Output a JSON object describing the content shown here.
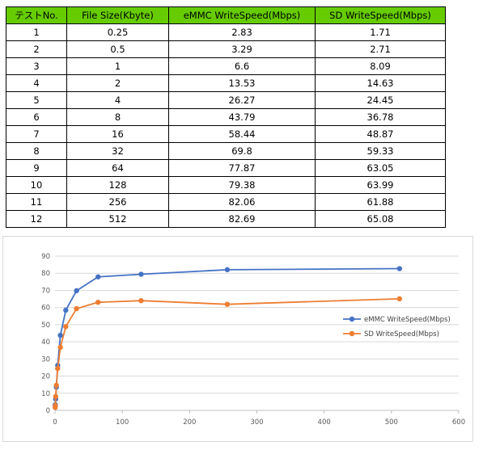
{
  "table": {
    "headers": [
      "テストNo.",
      "File Size(Kbyte)",
      "eMMC WriteSpeed(Mbps)",
      "SD WriteSpeed(Mbps)"
    ],
    "rows": [
      [
        "1",
        "0.25",
        "2.83",
        "1.71"
      ],
      [
        "2",
        "0.5",
        "3.29",
        "2.71"
      ],
      [
        "3",
        "1",
        "6.6",
        "8.09"
      ],
      [
        "4",
        "2",
        "13.53",
        "14.63"
      ],
      [
        "5",
        "4",
        "26.27",
        "24.45"
      ],
      [
        "6",
        "8",
        "43.79",
        "36.78"
      ],
      [
        "7",
        "16",
        "58.44",
        "48.87"
      ],
      [
        "8",
        "32",
        "69.8",
        "59.33"
      ],
      [
        "9",
        "64",
        "77.87",
        "63.05"
      ],
      [
        "10",
        "128",
        "79.38",
        "63.99"
      ],
      [
        "11",
        "256",
        "82.06",
        "61.88"
      ],
      [
        "12",
        "512",
        "82.69",
        "65.08"
      ]
    ],
    "header_color": "#66cc00"
  },
  "chart_data": {
    "type": "scatter",
    "title": "",
    "xlabel": "",
    "ylabel": "",
    "xlim": [
      0,
      600
    ],
    "ylim": [
      0,
      90
    ],
    "x_ticks": [
      0,
      100,
      200,
      300,
      400,
      500,
      600
    ],
    "y_ticks": [
      0,
      10,
      20,
      30,
      40,
      50,
      60,
      70,
      80,
      90
    ],
    "grid": true,
    "legend_position": "right",
    "x": [
      0.25,
      0.5,
      1,
      2,
      4,
      8,
      16,
      32,
      64,
      128,
      256,
      512
    ],
    "series": [
      {
        "name": "eMMC WriteSpeed(Mbps)",
        "color": "#4472c4",
        "values": [
          2.83,
          3.29,
          6.6,
          13.53,
          26.27,
          43.79,
          58.44,
          69.8,
          77.87,
          79.38,
          82.06,
          82.69
        ]
      },
      {
        "name": "SD WriteSpeed(Mbps)",
        "color": "#ed7d31",
        "values": [
          1.71,
          2.71,
          8.09,
          14.63,
          24.45,
          36.78,
          48.87,
          59.33,
          63.05,
          63.99,
          61.88,
          65.08
        ]
      }
    ]
  }
}
